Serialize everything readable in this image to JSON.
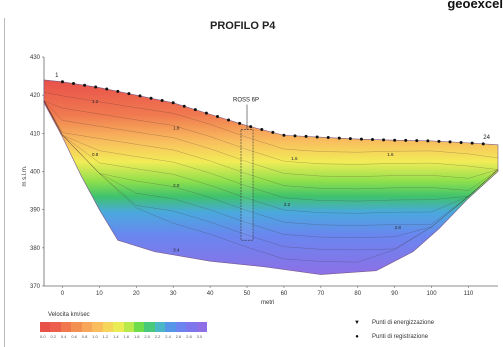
{
  "header": {
    "corner_text": "geoexcel"
  },
  "chart_data": {
    "type": "heatmap",
    "title": "PROFILO P4",
    "xlabel": "metri",
    "ylabel": "m s.l.m.",
    "xlim": [
      -5,
      118
    ],
    "ylim": [
      370,
      430
    ],
    "x_ticks": [
      0,
      10,
      20,
      30,
      40,
      50,
      60,
      70,
      80,
      90,
      100,
      110
    ],
    "y_ticks": [
      370,
      380,
      390,
      400,
      410,
      420,
      430
    ],
    "surface": [
      [
        -5,
        424
      ],
      [
        0,
        423.5
      ],
      [
        10,
        422
      ],
      [
        20,
        420
      ],
      [
        30,
        418
      ],
      [
        40,
        415
      ],
      [
        50,
        412
      ],
      [
        60,
        409.5
      ],
      [
        70,
        409
      ],
      [
        80,
        408.5
      ],
      [
        90,
        408.2
      ],
      [
        100,
        408
      ],
      [
        110,
        407.5
      ],
      [
        118,
        407
      ]
    ],
    "base": [
      [
        -5,
        418
      ],
      [
        0,
        409
      ],
      [
        5,
        399
      ],
      [
        10,
        390
      ],
      [
        15,
        382
      ],
      [
        25,
        379
      ],
      [
        40,
        376.5
      ],
      [
        55,
        375
      ],
      [
        70,
        373
      ],
      [
        85,
        374
      ],
      [
        95,
        379
      ],
      [
        102,
        385
      ],
      [
        110,
        393
      ],
      [
        118,
        400
      ]
    ],
    "borehole": {
      "label": "ROSS 6P",
      "x": 50,
      "top": 411,
      "bottom": 382
    },
    "energization_points": [
      0,
      3,
      6,
      9,
      12,
      15,
      18,
      21,
      24,
      27,
      30,
      33,
      36,
      39,
      42,
      45,
      48,
      51,
      54,
      57,
      60,
      63,
      66,
      69,
      72,
      75,
      78,
      81,
      84,
      87,
      90,
      93,
      96,
      99,
      102,
      105,
      108,
      111,
      114
    ],
    "point_labels": [
      {
        "x": -2,
        "label": "1"
      },
      {
        "x": 114,
        "label": "24"
      }
    ],
    "contour_labels": [
      {
        "x": 8,
        "y": 418,
        "label": "1.2"
      },
      {
        "x": 30,
        "y": 411,
        "label": "1.8"
      },
      {
        "x": 8,
        "y": 404,
        "label": "0.8"
      },
      {
        "x": 62,
        "y": 403,
        "label": "1.6"
      },
      {
        "x": 88,
        "y": 404,
        "label": "1.6"
      },
      {
        "x": 30,
        "y": 396,
        "label": "2.0"
      },
      {
        "x": 60,
        "y": 391,
        "label": "2.2"
      },
      {
        "x": 90,
        "y": 385,
        "label": "2.8"
      },
      {
        "x": 30,
        "y": 379,
        "label": "3.4"
      }
    ]
  },
  "legend": {
    "title": "Velocita km/sec",
    "ticks": [
      "0.0",
      "0.2",
      "0.4",
      "0.6",
      "0.8",
      "1.0",
      "1.2",
      "1.4",
      "1.6",
      "1.8",
      "2.0",
      "2.2",
      "2.4",
      "2.6",
      "2.8",
      "3.0"
    ],
    "colors": [
      "#e8504a",
      "#ec5f4c",
      "#f1774f",
      "#f48f52",
      "#f7a65a",
      "#f9bd5e",
      "#f6d65a",
      "#e9ec54",
      "#b9ea4c",
      "#6fdc4c",
      "#49c97a",
      "#4ab7c6",
      "#5596e9",
      "#6c84ef",
      "#7e76ec",
      "#8f6fe5"
    ]
  },
  "symbols": {
    "energization": "Punti di energizzazione",
    "recording": "Punti di registrazione"
  }
}
